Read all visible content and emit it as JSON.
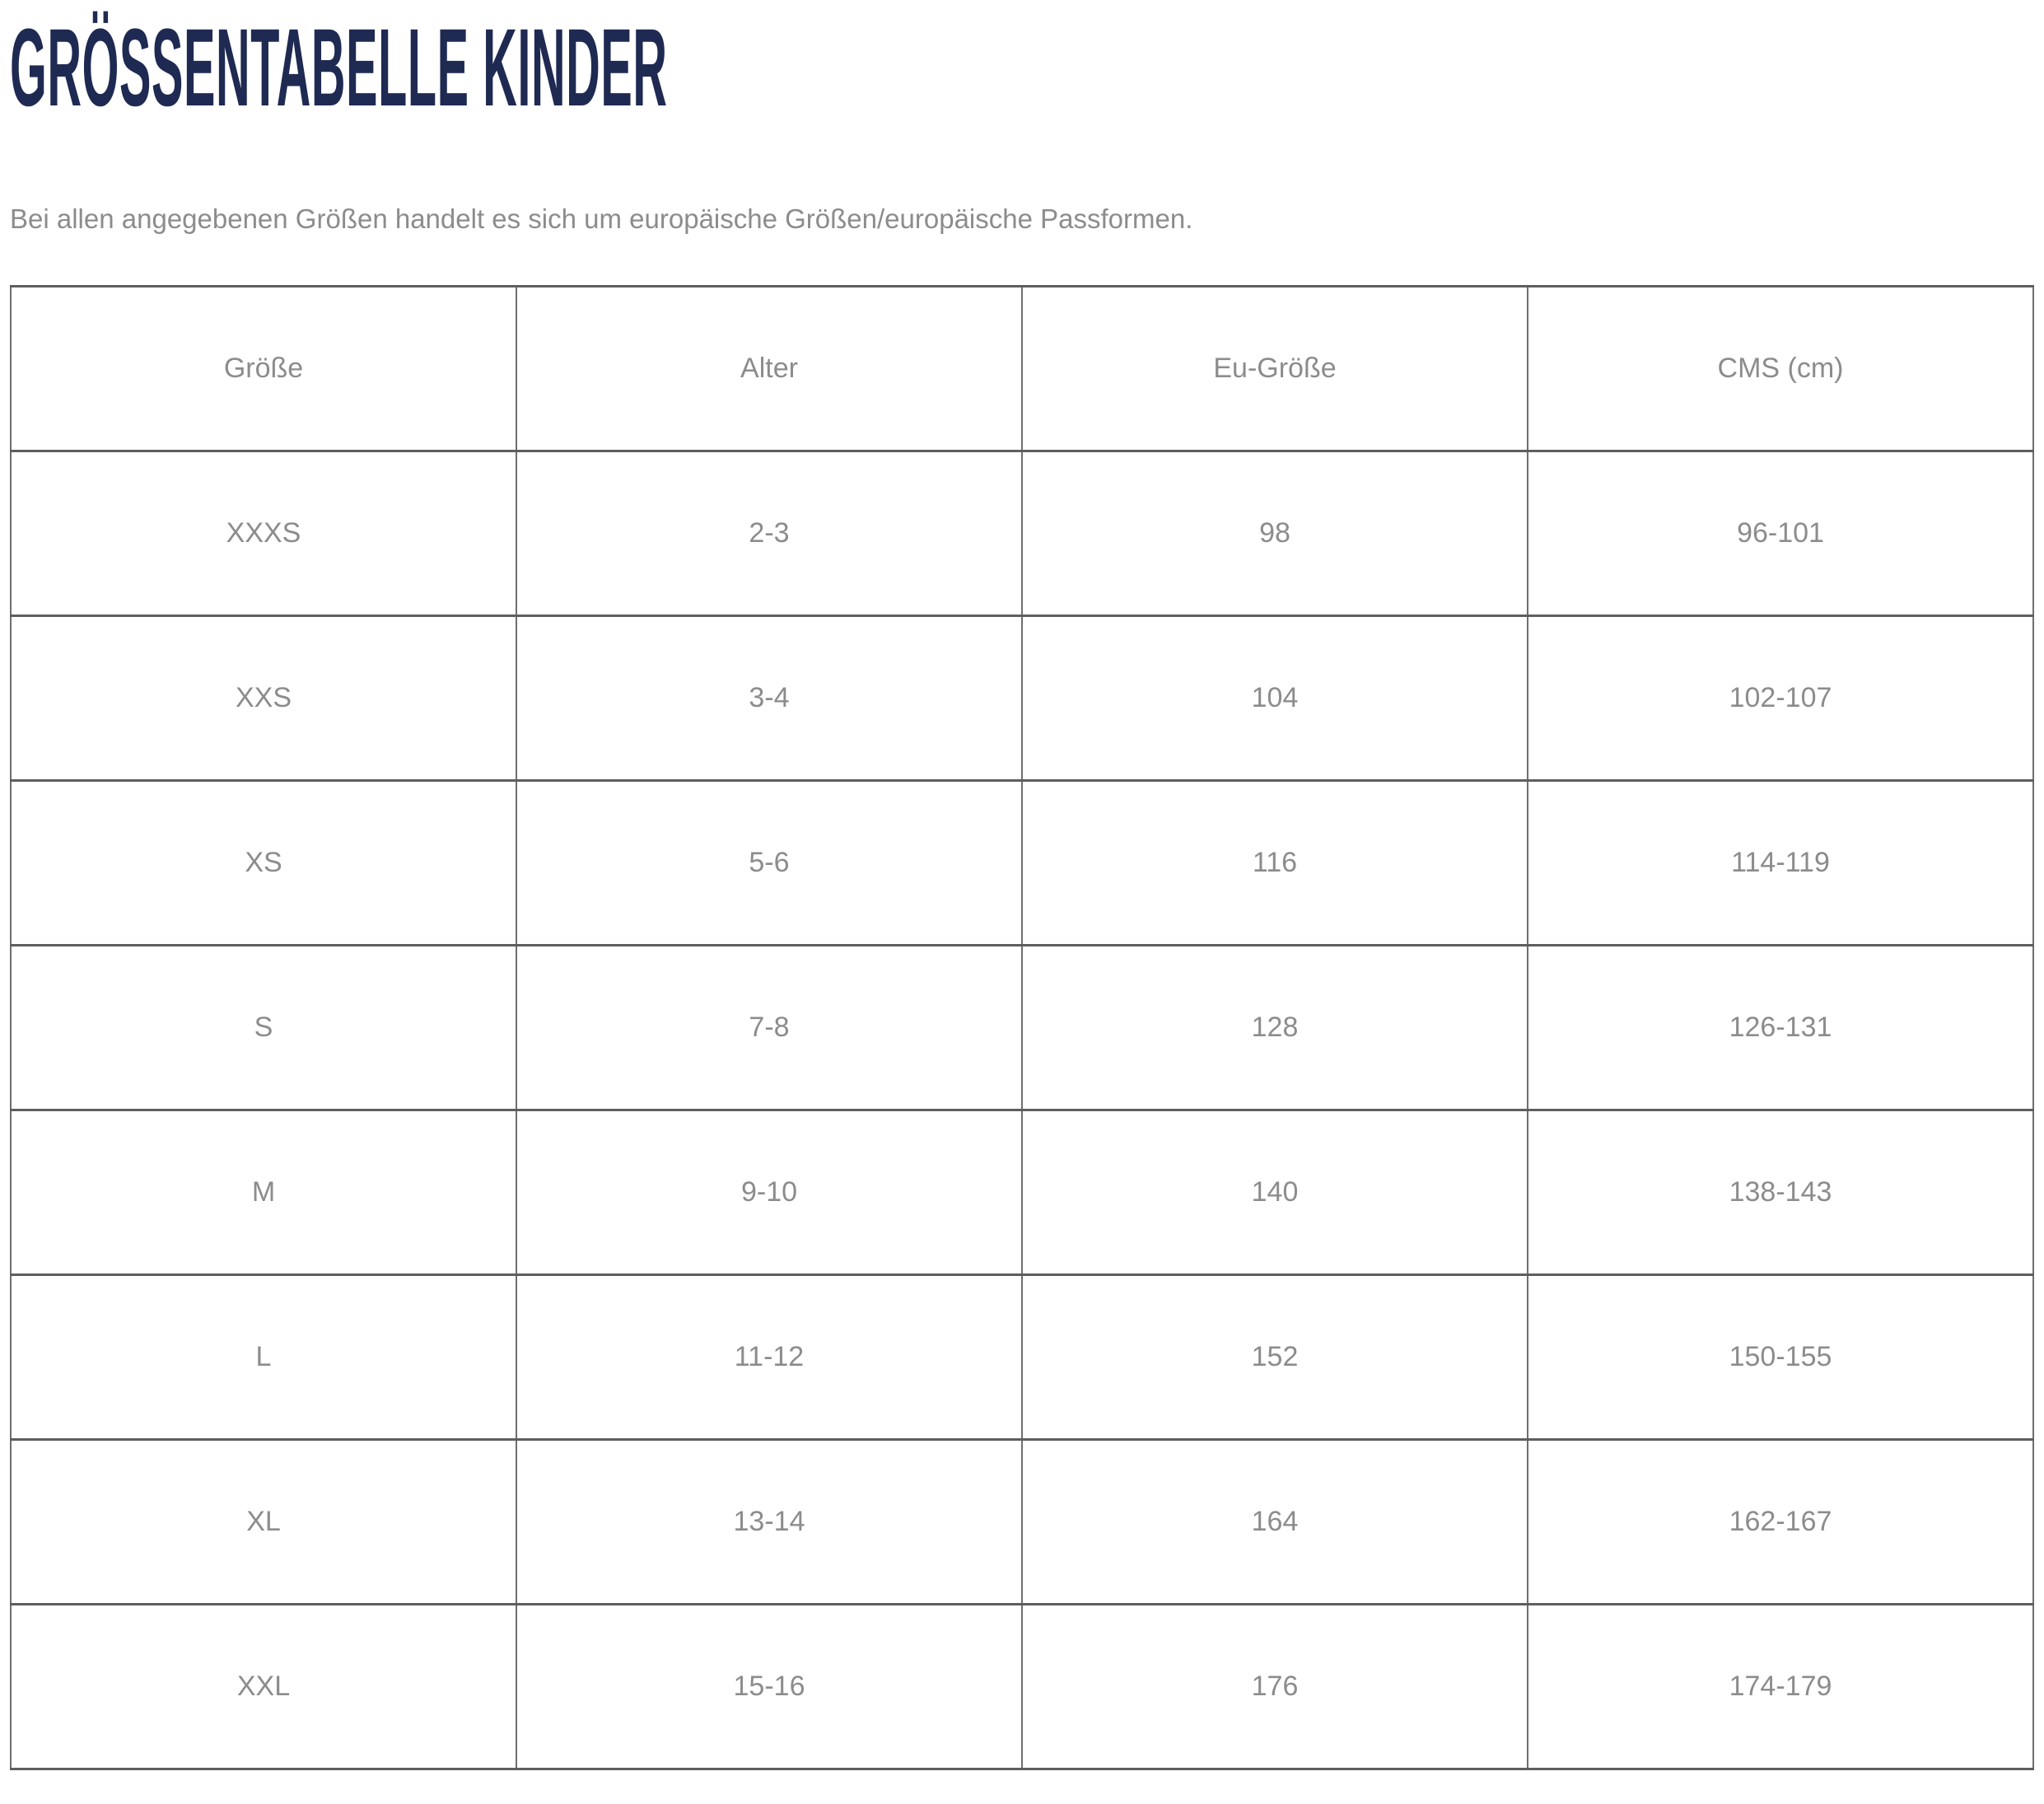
{
  "header": {
    "title": "GRÖSSENTABELLE KINDER",
    "subtitle": "Bei allen angegebenen Größen handelt es sich um europäische Größen/europäische Passformen."
  },
  "colors": {
    "title": "#1f2a52",
    "text": "#8c8c8c",
    "border_horizontal": "#5e5e5e",
    "border_vertical": "#6e6e6e",
    "page_bg": "#ffffff"
  },
  "table": {
    "columns": [
      "Größe",
      "Alter",
      "Eu-Größe",
      "CMS (cm)"
    ],
    "rows": [
      [
        "XXXS",
        "2-3",
        "98",
        "96-101"
      ],
      [
        "XXS",
        "3-4",
        "104",
        "102-107"
      ],
      [
        "XS",
        "5-6",
        "116",
        "114-119"
      ],
      [
        "S",
        "7-8",
        "128",
        "126-131"
      ],
      [
        "M",
        "9-10",
        "140",
        "138-143"
      ],
      [
        "L",
        "11-12",
        "152",
        "150-155"
      ],
      [
        "XL",
        "13-14",
        "164",
        "162-167"
      ],
      [
        "XXL",
        "15-16",
        "176",
        "174-179"
      ]
    ]
  }
}
